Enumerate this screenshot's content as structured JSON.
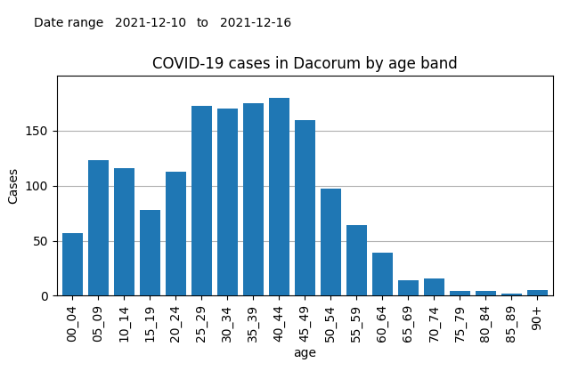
{
  "chart_data": {
    "type": "bar",
    "title": "COVID-19 cases in Dacorum by age band",
    "xlabel": "age",
    "ylabel": "Cases",
    "annotations": [
      "Date range",
      "2021-12-10",
      "to",
      "2021-12-16"
    ],
    "categories": [
      "00_04",
      "05_09",
      "10_14",
      "15_19",
      "20_24",
      "25_29",
      "30_34",
      "35_39",
      "40_44",
      "45_49",
      "50_54",
      "55_59",
      "60_64",
      "65_69",
      "70_74",
      "75_79",
      "80_84",
      "85_89",
      "90+"
    ],
    "values": [
      57,
      123,
      116,
      78,
      113,
      173,
      170,
      175,
      180,
      160,
      97,
      64,
      39,
      14,
      16,
      4,
      4,
      2,
      5
    ],
    "ylim": [
      0,
      200
    ],
    "yticks": [
      0,
      50,
      100,
      150
    ],
    "grid": true
  }
}
